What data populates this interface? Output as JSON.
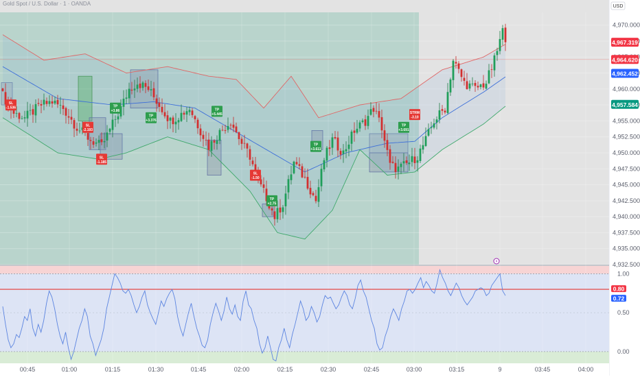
{
  "header": {
    "symbol_title": "Gold Spot / U.S. Dollar · 1 · OANDA",
    "currency_button": "USD"
  },
  "colors": {
    "up": "#26a69a",
    "down": "#ef5350",
    "bb_upper": "#e06666",
    "bb_lower": "#3ea86a",
    "bb_mid": "#3d6fd9",
    "rsi_line": "#5b84e0",
    "session_shade": "#b9d4cc",
    "panel_right": "#e3e3e3"
  },
  "chart_data": [
    {
      "type": "candlestick",
      "title": "",
      "x_tick_labels": [
        "00:45",
        "01:00",
        "01:15",
        "01:30",
        "01:45",
        "02:00",
        "02:15",
        "02:30",
        "02:45",
        "03:00",
        "03:15",
        "9",
        "03:45",
        "04:00"
      ],
      "y_tick_labels": [
        "4,970.000",
        "4,967.500",
        "4,965.000",
        "4,962.500",
        "4,960.000",
        "4,957.500",
        "4,955.000",
        "4,952.500",
        "4,950.000",
        "4,947.500",
        "4,945.000",
        "4,942.500",
        "4,940.000",
        "4,937.500",
        "4,935.000",
        "4,932.500"
      ],
      "ylim": [
        4932.5,
        4972.0
      ],
      "price_labels": [
        {
          "value": "4,967.319",
          "color": "#f23645"
        },
        {
          "value": "4,964.620",
          "color": "#f23645"
        },
        {
          "value": "4,962.452",
          "color": "#2962ff"
        },
        {
          "value": "4,957.584",
          "color": "#089981"
        }
      ],
      "close_anchors": [
        [
          0,
          4959.0
        ],
        [
          4,
          4956.2
        ],
        [
          8,
          4955.5
        ],
        [
          14,
          4957.5
        ],
        [
          18,
          4958.0
        ],
        [
          22,
          4957.0
        ],
        [
          27,
          4954.0
        ],
        [
          32,
          4952.0
        ],
        [
          36,
          4951.0
        ],
        [
          40,
          4954.5
        ],
        [
          43,
          4957.0
        ],
        [
          46,
          4960.0
        ],
        [
          49,
          4961.0
        ],
        [
          53,
          4960.0
        ],
        [
          57,
          4957.5
        ],
        [
          61,
          4955.0
        ],
        [
          64,
          4955.8
        ],
        [
          68,
          4957.0
        ],
        [
          72,
          4953.5
        ],
        [
          75,
          4951.0
        ],
        [
          79,
          4953.2
        ],
        [
          83,
          4955.0
        ],
        [
          87,
          4951.5
        ],
        [
          90,
          4949.5
        ],
        [
          93,
          4945.5
        ],
        [
          96,
          4943.0
        ],
        [
          99,
          4940.0
        ],
        [
          102,
          4942.0
        ],
        [
          106,
          4948.5
        ],
        [
          110,
          4946.0
        ],
        [
          114,
          4942.5
        ],
        [
          117,
          4949.0
        ],
        [
          120,
          4952.0
        ],
        [
          124,
          4950.0
        ],
        [
          128,
          4953.5
        ],
        [
          132,
          4955.0
        ],
        [
          135,
          4957.0
        ],
        [
          138,
          4954.0
        ],
        [
          141,
          4948.0
        ],
        [
          144,
          4947.5
        ],
        [
          148,
          4948.5
        ],
        [
          151,
          4949.5
        ],
        [
          154,
          4952.0
        ],
        [
          157,
          4955.0
        ],
        [
          161,
          4957.0
        ],
        [
          164,
          4964.5
        ],
        [
          168,
          4961.0
        ],
        [
          172,
          4960.0
        ],
        [
          176,
          4961.0
        ],
        [
          179,
          4964.5
        ],
        [
          182,
          4969.0
        ],
        [
          183,
          4967.3
        ]
      ],
      "bollinger": {
        "upper_anchors": [
          [
            0,
            4968.5
          ],
          [
            15,
            4964.5
          ],
          [
            30,
            4965.5
          ],
          [
            45,
            4962.5
          ],
          [
            60,
            4963.5
          ],
          [
            75,
            4962.0
          ],
          [
            85,
            4961.5
          ],
          [
            95,
            4957.0
          ],
          [
            105,
            4962.0
          ],
          [
            115,
            4955.5
          ],
          [
            130,
            4957.5
          ],
          [
            145,
            4958.5
          ],
          [
            160,
            4963.0
          ],
          [
            175,
            4965.0
          ],
          [
            185,
            4967.5
          ]
        ],
        "mid_anchors": [
          [
            0,
            4963.5
          ],
          [
            20,
            4958.5
          ],
          [
            40,
            4957.5
          ],
          [
            55,
            4958.0
          ],
          [
            70,
            4957.0
          ],
          [
            90,
            4952.0
          ],
          [
            110,
            4947.0
          ],
          [
            125,
            4950.0
          ],
          [
            140,
            4951.5
          ],
          [
            150,
            4951.8
          ],
          [
            160,
            4955.5
          ],
          [
            175,
            4959.5
          ],
          [
            185,
            4962.5
          ]
        ],
        "lower_anchors": [
          [
            0,
            4955.5
          ],
          [
            20,
            4950.0
          ],
          [
            35,
            4949.0
          ],
          [
            45,
            4950.0
          ],
          [
            60,
            4952.5
          ],
          [
            75,
            4950.5
          ],
          [
            90,
            4944.0
          ],
          [
            100,
            4937.5
          ],
          [
            110,
            4936.5
          ],
          [
            120,
            4941.0
          ],
          [
            130,
            4950.5
          ],
          [
            140,
            4946.5
          ],
          [
            150,
            4947.0
          ],
          [
            160,
            4950.5
          ],
          [
            175,
            4954.5
          ],
          [
            185,
            4958.0
          ]
        ]
      },
      "session_end_index": 152,
      "bars_count": 184,
      "last_bar_index": 183,
      "trade_badges": [
        {
          "text": "TP",
          "value": "+3.86",
          "kind": "win",
          "bar": 41,
          "price": 4957.0
        },
        {
          "text": "TP",
          "value": "+3.376",
          "kind": "win",
          "bar": 54,
          "price": 4955.5
        },
        {
          "text": "TP",
          "value": "+5.445",
          "kind": "win",
          "bar": 78,
          "price": 4956.5
        },
        {
          "text": "TP",
          "value": "+3.611",
          "kind": "win",
          "bar": 114,
          "price": 4951.0
        },
        {
          "text": "TP",
          "value": "+2.75",
          "kind": "win",
          "bar": 98,
          "price": 4942.5
        },
        {
          "text": "TP",
          "value": "+3.691",
          "kind": "win",
          "bar": 146,
          "price": 4954.0
        },
        {
          "text": "SL",
          "value": "-2.193",
          "kind": "loss",
          "bar": 31,
          "price": 4954.0
        },
        {
          "text": "SL",
          "value": "-1.185",
          "kind": "loss",
          "bar": 36,
          "price": 4949.0
        },
        {
          "text": "SL",
          "value": "-1.536",
          "kind": "loss",
          "bar": 3,
          "price": 4957.5
        },
        {
          "text": "SL",
          "value": "-1.50",
          "kind": "loss",
          "bar": 92,
          "price": 4946.5
        },
        {
          "text": "STRM",
          "value": "-3.10",
          "kind": "loss",
          "bar": 150,
          "price": 4956.0
        }
      ],
      "trade_boxes": [
        {
          "from": 28,
          "to": 32,
          "top": 4962.0,
          "bottom": 4955.0,
          "kind": "win"
        },
        {
          "from": 32,
          "to": 37,
          "top": 4955.5,
          "bottom": 4950.5,
          "kind": "loss"
        },
        {
          "from": 36,
          "to": 43,
          "top": 4953.0,
          "bottom": 4949.0,
          "kind": "loss"
        },
        {
          "from": 47,
          "to": 56,
          "top": 4963.0,
          "bottom": 4957.0,
          "kind": "loss"
        },
        {
          "from": 75,
          "to": 79,
          "top": 4952.0,
          "bottom": 4946.5,
          "kind": "loss"
        },
        {
          "from": 95,
          "to": 98,
          "top": 4942.0,
          "bottom": 4940.0,
          "kind": "loss"
        },
        {
          "from": 113,
          "to": 116,
          "top": 4953.5,
          "bottom": 4950.5,
          "kind": "loss"
        },
        {
          "from": 134,
          "to": 147,
          "top": 4950.0,
          "bottom": 4947.0,
          "kind": "loss"
        },
        {
          "from": 134,
          "to": 147,
          "top": 4953.0,
          "bottom": 4950.0,
          "kind": "neutral"
        },
        {
          "from": 0,
          "to": 3,
          "top": 4961.0,
          "bottom": 4957.5,
          "kind": "neutral"
        }
      ]
    },
    {
      "type": "line",
      "title": "",
      "y_tick_labels": [
        "1.00",
        "0.50",
        "0.00"
      ],
      "ylim": [
        -0.15,
        1.1
      ],
      "reference_line": 0.8,
      "dotted_lines": [
        1.0,
        0.0
      ],
      "value_labels": [
        {
          "value": "0.80",
          "color": "#f23645"
        },
        {
          "value": "0.72",
          "color": "#2962ff"
        }
      ],
      "values": [
        0.58,
        0.35,
        0.15,
        0.05,
        0.1,
        0.22,
        0.18,
        0.3,
        0.45,
        0.4,
        0.55,
        0.3,
        0.2,
        0.35,
        0.25,
        0.4,
        0.62,
        0.78,
        0.7,
        0.55,
        0.35,
        0.2,
        0.1,
        0.25,
        0.05,
        -0.1,
        0.0,
        0.15,
        0.3,
        0.4,
        0.55,
        0.45,
        0.2,
        0.1,
        -0.05,
        0.05,
        0.15,
        0.3,
        0.55,
        0.7,
        0.85,
        1.0,
        0.95,
        0.88,
        0.78,
        0.75,
        0.8,
        0.72,
        0.6,
        0.5,
        0.58,
        0.7,
        0.78,
        0.6,
        0.5,
        0.42,
        0.35,
        0.5,
        0.65,
        0.58,
        0.68,
        0.75,
        0.8,
        0.68,
        0.45,
        0.3,
        0.2,
        0.35,
        0.5,
        0.62,
        0.45,
        0.3,
        0.2,
        0.08,
        0.05,
        0.15,
        0.35,
        0.5,
        0.62,
        0.52,
        0.4,
        0.52,
        0.7,
        0.55,
        0.48,
        0.6,
        0.45,
        0.4,
        0.65,
        0.78,
        0.6,
        0.55,
        0.4,
        0.3,
        0.1,
        -0.02,
        0.05,
        0.2,
        0.05,
        -0.1,
        -0.12,
        0.05,
        0.15,
        0.3,
        0.15,
        0.05,
        0.22,
        0.35,
        0.5,
        0.65,
        0.55,
        0.4,
        0.45,
        0.58,
        0.5,
        0.38,
        0.45,
        0.6,
        0.72,
        0.68,
        0.7,
        0.62,
        0.55,
        0.6,
        0.7,
        0.78,
        0.72,
        0.6,
        0.55,
        0.68,
        0.85,
        0.92,
        0.78,
        0.7,
        0.55,
        0.4,
        0.3,
        0.1,
        0.02,
        0.05,
        0.2,
        0.3,
        0.45,
        0.55,
        0.48,
        0.4,
        0.55,
        0.65,
        0.78,
        0.8,
        0.75,
        0.8,
        0.88,
        0.95,
        0.82,
        0.9,
        0.85,
        0.78,
        0.75,
        0.88,
        1.05,
        0.95,
        0.88,
        0.78,
        0.72,
        0.8,
        0.88,
        0.82,
        0.72,
        0.65,
        0.6,
        0.65,
        0.7,
        0.78,
        0.8,
        0.82,
        0.8,
        0.72,
        0.75,
        0.85,
        0.9,
        0.95,
        1.0,
        0.78,
        0.72
      ]
    }
  ]
}
